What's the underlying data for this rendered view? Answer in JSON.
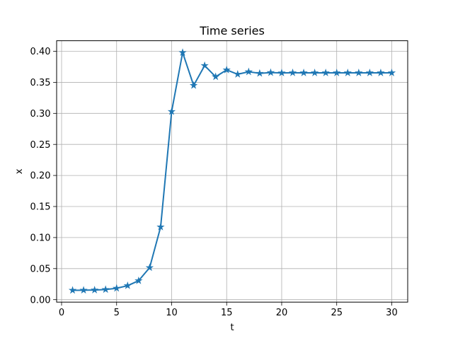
{
  "chart_data": {
    "type": "line",
    "title": "Time series",
    "xlabel": "t",
    "ylabel": "x",
    "xlim": [
      -0.45,
      31.45
    ],
    "ylim": [
      -0.004,
      0.417
    ],
    "xticks": [
      0,
      5,
      10,
      15,
      20,
      25,
      30
    ],
    "yticks": [
      0.0,
      0.05,
      0.1,
      0.15,
      0.2,
      0.25,
      0.3,
      0.35,
      0.4
    ],
    "xtick_labels": [
      "0",
      "5",
      "10",
      "15",
      "20",
      "25",
      "30"
    ],
    "ytick_labels": [
      "0.00",
      "0.05",
      "0.10",
      "0.15",
      "0.20",
      "0.25",
      "0.30",
      "0.35",
      "0.40"
    ],
    "grid": true,
    "legend": false,
    "marker": "star",
    "color": "#1f77b4",
    "series": [
      {
        "x": [
          1,
          2,
          3,
          4,
          5,
          6,
          7,
          8,
          9,
          10,
          11,
          12,
          13,
          14,
          15,
          16,
          17,
          18,
          19,
          20,
          21,
          22,
          23,
          24,
          25,
          26,
          27,
          28,
          29,
          30
        ],
        "values": [
          0.015,
          0.0152,
          0.0155,
          0.0163,
          0.0183,
          0.0225,
          0.0305,
          0.0515,
          0.117,
          0.303,
          0.398,
          0.345,
          0.377,
          0.359,
          0.37,
          0.363,
          0.367,
          0.3645,
          0.3657,
          0.3652,
          0.3654,
          0.3653,
          0.3653,
          0.3653,
          0.3653,
          0.3653,
          0.3653,
          0.3653,
          0.3653,
          0.3653
        ]
      }
    ]
  }
}
